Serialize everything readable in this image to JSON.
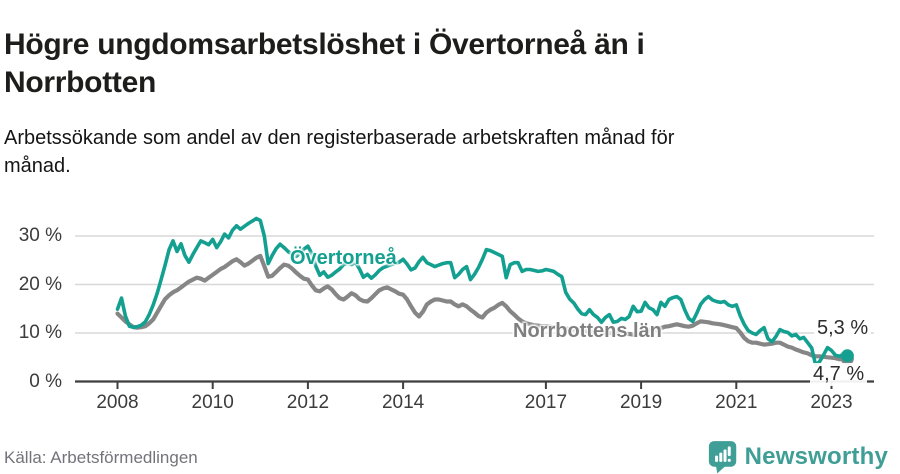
{
  "header": {
    "title": "Högre ungdomsarbetslöshet i Övertorneå än i Norrbotten",
    "subtitle": "Arbetssökande som andel av den registerbaserade arbetskraften månad för månad."
  },
  "chart_data": {
    "type": "line",
    "frequency": "monthly",
    "unit": "%",
    "x_start_label": "2008-01",
    "x_end_label": "2023-05",
    "x_start_year": 2008,
    "xlim": [
      2007.6,
      2024.0
    ],
    "ylim": [
      0,
      35
    ],
    "grid": "horizontal",
    "legend_position": "direct-labels-on-chart",
    "x_ticks": [
      2008,
      2010,
      2012,
      2014,
      2017,
      2019,
      2021,
      2023
    ],
    "x_tick_labels": [
      "2008",
      "2010",
      "2012",
      "2014",
      "2017",
      "2019",
      "2021",
      "2023"
    ],
    "y_ticks": [
      0,
      10,
      20,
      30
    ],
    "y_tick_labels": [
      "0 %",
      "10 %",
      "20 %",
      "30 %"
    ],
    "colors": {
      "grid": "#d8d8d8",
      "axis": "#3f3f3f",
      "tick_text": "#3c3c3c",
      "end_label_text": "#2d2d2d"
    },
    "series": [
      {
        "name": "Övertorneå",
        "color": "#14a091",
        "end_label": "5,3 %",
        "end_value": 5.3,
        "values": [
          14.9,
          17.2,
          13.5,
          11.4,
          11.2,
          11.3,
          11.6,
          12.3,
          13.8,
          15.8,
          18.2,
          21.0,
          24.0,
          27.2,
          29.0,
          26.8,
          28.4,
          26.0,
          24.6,
          26.2,
          27.6,
          29.0,
          28.6,
          28.2,
          29.3,
          27.6,
          28.8,
          30.4,
          29.6,
          31.2,
          32.1,
          31.4,
          32.0,
          32.6,
          33.1,
          33.6,
          33.2,
          30.0,
          24.3,
          26.0,
          27.4,
          28.3,
          27.6,
          26.8,
          26.2,
          25.8,
          26.4,
          27.3,
          27.9,
          26.3,
          23.8,
          21.9,
          22.6,
          21.5,
          21.9,
          22.6,
          23.2,
          24.1,
          24.4,
          24.1,
          24.6,
          23.2,
          21.5,
          22.1,
          21.3,
          22.0,
          22.9,
          23.5,
          23.8,
          24.1,
          24.4,
          24.6,
          25.2,
          24.2,
          23.0,
          23.4,
          24.7,
          25.6,
          24.5,
          24.1,
          23.7,
          24.0,
          24.3,
          24.5,
          24.5,
          21.4,
          22.1,
          23.1,
          23.7,
          21.0,
          22.1,
          23.5,
          25.2,
          27.2,
          27.0,
          26.6,
          26.2,
          25.8,
          21.4,
          24.1,
          24.5,
          24.5,
          22.7,
          23.1,
          23.1,
          22.9,
          22.7,
          22.8,
          23.1,
          22.9,
          22.7,
          22.1,
          21.6,
          18.4,
          17.0,
          16.2,
          15.0,
          14.0,
          13.8,
          14.8,
          13.8,
          13.2,
          12.2,
          13.2,
          13.8,
          12.2,
          12.4,
          13.0,
          12.8,
          13.4,
          15.5,
          14.4,
          14.5,
          16.3,
          15.2,
          14.8,
          13.8,
          16.3,
          15.5,
          16.9,
          17.3,
          17.5,
          16.9,
          14.8,
          13.0,
          12.4,
          14.0,
          15.9,
          16.9,
          17.5,
          16.8,
          16.5,
          16.3,
          16.5,
          15.8,
          15.5,
          15.8,
          13.5,
          11.8,
          10.5,
          10.0,
          9.7,
          10.5,
          11.1,
          8.8,
          8.2,
          9.3,
          10.7,
          10.3,
          10.1,
          9.4,
          9.7,
          8.8,
          9.1,
          8.0,
          6.9,
          3.4,
          4.1,
          5.5,
          7.0,
          6.4,
          5.4,
          5.2,
          5.6,
          5.3
        ]
      },
      {
        "name": "Norrbottens län",
        "color": "#868686",
        "end_label": "4,7 %",
        "end_value": 4.7,
        "values": [
          14.0,
          13.2,
          12.4,
          11.8,
          11.2,
          11.1,
          11.2,
          11.4,
          12.0,
          12.8,
          14.2,
          15.6,
          17.0,
          17.8,
          18.4,
          18.8,
          19.4,
          20.0,
          20.6,
          21.0,
          21.4,
          21.2,
          20.8,
          21.4,
          22.0,
          22.6,
          23.2,
          23.6,
          24.2,
          24.8,
          25.2,
          24.6,
          23.9,
          24.3,
          24.9,
          25.5,
          25.9,
          23.8,
          21.6,
          21.8,
          22.6,
          23.4,
          24.1,
          23.9,
          23.3,
          22.5,
          21.8,
          21.2,
          21.0,
          19.8,
          18.8,
          18.6,
          19.2,
          19.6,
          19.0,
          18.0,
          17.2,
          16.9,
          17.5,
          18.2,
          17.8,
          17.0,
          16.6,
          16.5,
          17.2,
          18.0,
          18.8,
          19.2,
          19.4,
          19.0,
          18.6,
          18.1,
          17.9,
          16.9,
          15.5,
          14.2,
          13.4,
          14.4,
          15.9,
          16.5,
          16.9,
          16.9,
          16.7,
          16.5,
          16.5,
          15.9,
          15.5,
          15.9,
          15.5,
          14.8,
          14.2,
          13.5,
          13.2,
          14.2,
          14.8,
          15.2,
          15.8,
          16.2,
          15.5,
          14.5,
          13.8,
          13.0,
          12.4,
          12.0,
          11.8,
          11.6,
          11.5,
          11.4,
          11.4,
          11.3,
          11.2,
          11.1,
          11.0,
          10.9,
          10.8,
          10.7,
          10.6,
          10.5,
          10.4,
          10.3,
          10.2,
          10.2,
          10.1,
          10.0,
          10.0,
          10.0,
          9.9,
          9.9,
          9.8,
          9.8,
          9.7,
          9.7,
          10.2,
          10.3,
          10.5,
          10.7,
          10.7,
          11.0,
          11.3,
          11.4,
          11.6,
          11.8,
          11.6,
          11.4,
          11.3,
          11.5,
          12.0,
          12.4,
          12.3,
          12.2,
          12.0,
          11.9,
          11.8,
          11.6,
          11.4,
          11.2,
          11.0,
          10.1,
          9.0,
          8.3,
          8.0,
          8.0,
          7.8,
          7.6,
          7.7,
          7.8,
          8.0,
          8.0,
          7.6,
          7.2,
          7.0,
          6.6,
          6.3,
          6.0,
          5.8,
          5.4,
          5.2,
          5.2,
          5.1,
          5.0,
          4.9,
          4.8,
          4.6,
          4.6,
          4.7
        ]
      }
    ]
  },
  "footer": {
    "source": "Källa: Arbetsförmedlingen",
    "brand": "Newsworthy",
    "brand_color": "#3f9e96"
  }
}
